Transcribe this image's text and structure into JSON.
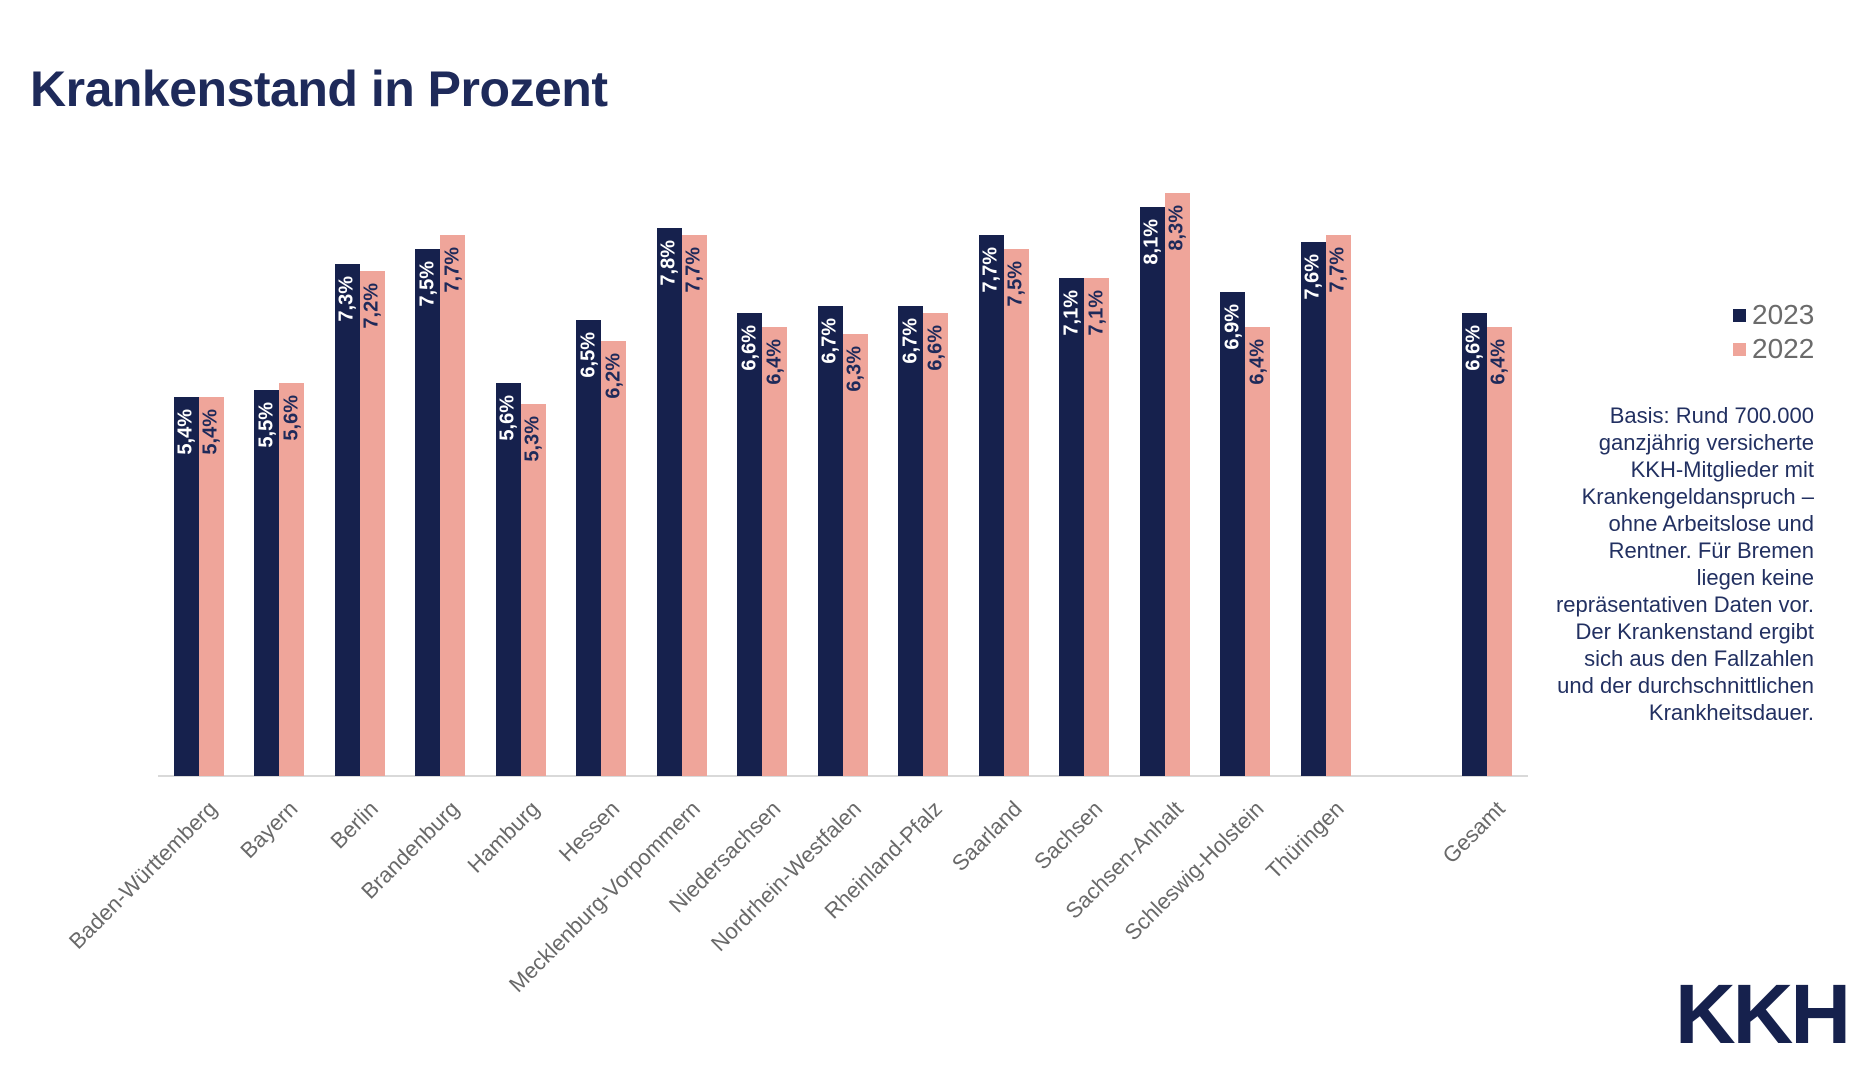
{
  "title": "Krankenstand in Prozent",
  "legend": [
    {
      "label": "2023",
      "color": "#16214d"
    },
    {
      "label": "2022",
      "color": "#efa59a"
    }
  ],
  "note": "Basis: Rund 700.000 ganzjährig versicherte KKH-Mitglieder mit Krankengeldanspruch – ohne Arbeitslose und Rentner. Für Bremen liegen keine repräsentativen Daten vor. Der Krankenstand ergibt sich aus den Fallzahlen und der durchschnittlichen Krankheitsdauer.",
  "logo": "KKH",
  "colors": {
    "bar_2023": "#16214d",
    "bar_2022": "#efa59a",
    "title_text": "#1e2a5a",
    "note_text": "#223061",
    "axis_label": "#696969",
    "legend_text": "#6b6b6b",
    "axis_line": "#d9d9d9"
  },
  "chart_data": {
    "type": "bar",
    "title": "Krankenstand in Prozent",
    "xlabel": "",
    "ylabel": "",
    "ylim": [
      0,
      8.8
    ],
    "grid": false,
    "legend_position": "right",
    "gap_before_last_category": true,
    "categories": [
      "Baden-Württemberg",
      "Bayern",
      "Berlin",
      "Brandenburg",
      "Hamburg",
      "Hessen",
      "Mecklenburg-Vorpommern",
      "Niedersachsen",
      "Nordrhein-Westfalen",
      "Rheinland-Pfalz",
      "Saarland",
      "Sachsen",
      "Sachsen-Anhalt",
      "Schleswig-Holstein",
      "Thüringen",
      "Gesamt"
    ],
    "series": [
      {
        "name": "2023",
        "color": "#16214d",
        "label_color": "#ffffff",
        "values": [
          5.4,
          5.5,
          7.3,
          7.5,
          5.6,
          6.5,
          7.8,
          6.6,
          6.7,
          6.7,
          7.7,
          7.1,
          8.1,
          6.9,
          7.6,
          6.6
        ],
        "labels": [
          "5,4%",
          "5,5%",
          "7,3%",
          "7,5%",
          "5,6%",
          "6,5%",
          "7,8%",
          "6,6%",
          "6,7%",
          "6,7%",
          "7,7%",
          "7,1%",
          "8,1%",
          "6,9%",
          "7,6%",
          "6,6%"
        ]
      },
      {
        "name": "2022",
        "color": "#efa59a",
        "label_color": "#1e2a5a",
        "values": [
          5.4,
          5.6,
          7.2,
          7.7,
          5.3,
          6.2,
          7.7,
          6.4,
          6.3,
          6.6,
          7.5,
          7.1,
          8.3,
          6.4,
          7.7,
          6.4
        ],
        "labels": [
          "5,4%",
          "5,6%",
          "7,2%",
          "7,7%",
          "5,3%",
          "6,2%",
          "7,7%",
          "6,4%",
          "6,3%",
          "6,6%",
          "7,5%",
          "7,1%",
          "8,3%",
          "6,4%",
          "7,7%",
          "6,4%"
        ]
      }
    ]
  }
}
